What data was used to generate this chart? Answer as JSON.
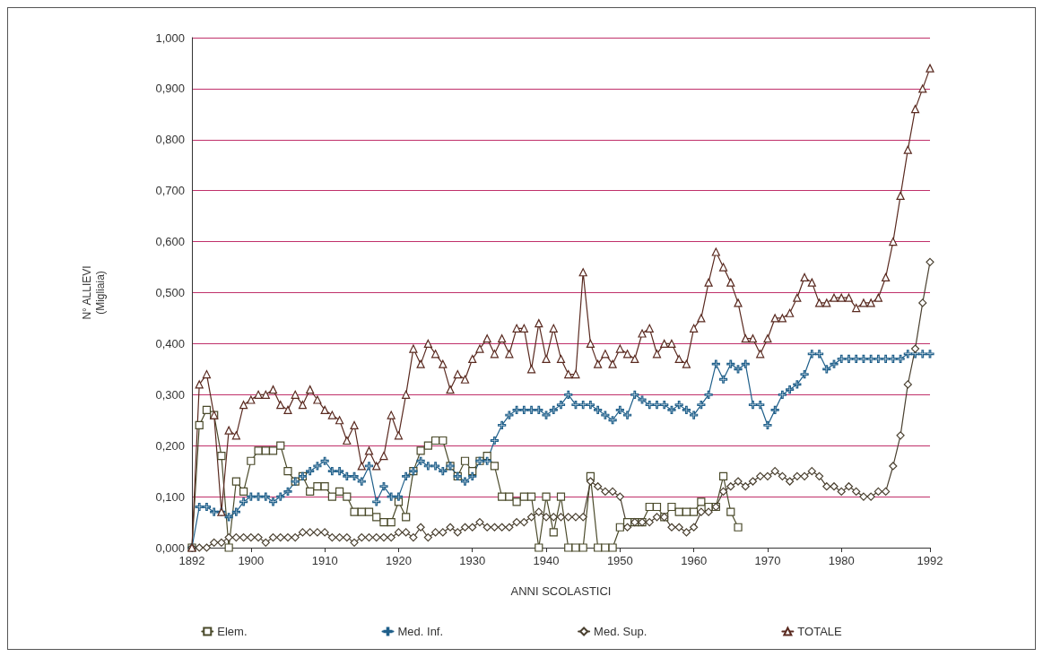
{
  "chart_data": {
    "type": "line",
    "xlabel": "ANNI SCOLASTICI",
    "ylabel": "N° ALLIEVI\n(Migliaia)",
    "x": [
      1892,
      1893,
      1894,
      1895,
      1896,
      1897,
      1898,
      1899,
      1900,
      1901,
      1902,
      1903,
      1904,
      1905,
      1906,
      1907,
      1908,
      1909,
      1910,
      1911,
      1912,
      1913,
      1914,
      1915,
      1916,
      1917,
      1918,
      1919,
      1920,
      1921,
      1922,
      1923,
      1924,
      1925,
      1926,
      1927,
      1928,
      1929,
      1930,
      1931,
      1932,
      1933,
      1934,
      1935,
      1936,
      1937,
      1938,
      1939,
      1940,
      1941,
      1942,
      1943,
      1944,
      1945,
      1946,
      1947,
      1948,
      1949,
      1950,
      1951,
      1952,
      1953,
      1954,
      1955,
      1956,
      1957,
      1958,
      1959,
      1960,
      1961,
      1962,
      1963,
      1964,
      1965,
      1966,
      1967,
      1968,
      1969,
      1970,
      1971,
      1972,
      1973,
      1974,
      1975,
      1976,
      1977,
      1978,
      1979,
      1980,
      1981,
      1982,
      1983,
      1984,
      1985,
      1986,
      1987,
      1988,
      1989,
      1990,
      1991,
      1992
    ],
    "series": [
      {
        "name": "Elem.",
        "color": "#4a4a2a",
        "marker": "square",
        "values": [
          0,
          0.24,
          0.27,
          0.26,
          0.18,
          0,
          0.13,
          0.11,
          0.17,
          0.19,
          0.19,
          0.19,
          0.2,
          0.15,
          0.13,
          0.14,
          0.11,
          0.12,
          0.12,
          0.1,
          0.11,
          0.1,
          0.07,
          0.07,
          0.07,
          0.06,
          0.05,
          0.05,
          0.09,
          0.06,
          0.15,
          0.19,
          0.2,
          0.21,
          0.21,
          0.16,
          0.14,
          0.17,
          0.15,
          0.17,
          0.18,
          0.16,
          0.1,
          0.1,
          0.09,
          0.1,
          0.1,
          0,
          0.1,
          0.03,
          0.1,
          0,
          0,
          0,
          0.14,
          0,
          0,
          0,
          0.04,
          0.05,
          0.05,
          0.05,
          0.08,
          0.08,
          0.06,
          0.08,
          0.07,
          0.07,
          0.07,
          0.09,
          0.08,
          0.08,
          0.14,
          0.07,
          0.04,
          null,
          null,
          null,
          null,
          null,
          null,
          null,
          null,
          null,
          null,
          null,
          null,
          null,
          null,
          null,
          null,
          null,
          null,
          null,
          null,
          null,
          null,
          null,
          null,
          null,
          null
        ]
      },
      {
        "name": "Med. Inf.",
        "color": "#1f5f8a",
        "marker": "cross",
        "values": [
          0,
          0.08,
          0.08,
          0.07,
          0.07,
          0.06,
          0.07,
          0.09,
          0.1,
          0.1,
          0.1,
          0.09,
          0.1,
          0.11,
          0.13,
          0.14,
          0.15,
          0.16,
          0.17,
          0.15,
          0.15,
          0.14,
          0.14,
          0.13,
          0.16,
          0.09,
          0.12,
          0.1,
          0.1,
          0.14,
          0.15,
          0.17,
          0.16,
          0.16,
          0.15,
          0.16,
          0.14,
          0.13,
          0.14,
          0.17,
          0.17,
          0.21,
          0.24,
          0.26,
          0.27,
          0.27,
          0.27,
          0.27,
          0.26,
          0.27,
          0.28,
          0.3,
          0.28,
          0.28,
          0.28,
          0.27,
          0.26,
          0.25,
          0.27,
          0.26,
          0.3,
          0.29,
          0.28,
          0.28,
          0.28,
          0.27,
          0.28,
          0.27,
          0.26,
          0.28,
          0.3,
          0.36,
          0.33,
          0.36,
          0.35,
          0.36,
          0.28,
          0.28,
          0.24,
          0.27,
          0.3,
          0.31,
          0.32,
          0.34,
          0.38,
          0.38,
          0.35,
          0.36,
          0.37,
          0.37,
          0.37,
          0.37,
          0.37,
          0.37,
          0.37,
          0.37,
          0.37,
          0.38,
          0.38,
          0.38,
          0.38
        ]
      },
      {
        "name": "Med. Sup.",
        "color": "#4a4030",
        "marker": "diamond",
        "values": [
          0,
          0,
          0,
          0.01,
          0.01,
          0.02,
          0.02,
          0.02,
          0.02,
          0.02,
          0.01,
          0.02,
          0.02,
          0.02,
          0.02,
          0.03,
          0.03,
          0.03,
          0.03,
          0.02,
          0.02,
          0.02,
          0.01,
          0.02,
          0.02,
          0.02,
          0.02,
          0.02,
          0.03,
          0.03,
          0.02,
          0.04,
          0.02,
          0.03,
          0.03,
          0.04,
          0.03,
          0.04,
          0.04,
          0.05,
          0.04,
          0.04,
          0.04,
          0.04,
          0.05,
          0.05,
          0.06,
          0.07,
          0.06,
          0.06,
          0.06,
          0.06,
          0.06,
          0.06,
          0.13,
          0.12,
          0.11,
          0.11,
          0.1,
          0.04,
          0.05,
          0.05,
          0.05,
          0.06,
          0.06,
          0.04,
          0.04,
          0.03,
          0.04,
          0.07,
          0.07,
          0.08,
          0.11,
          0.12,
          0.13,
          0.12,
          0.13,
          0.14,
          0.14,
          0.15,
          0.14,
          0.13,
          0.14,
          0.14,
          0.15,
          0.14,
          0.12,
          0.12,
          0.11,
          0.12,
          0.11,
          0.1,
          0.1,
          0.11,
          0.11,
          0.16,
          0.22,
          0.32,
          0.39,
          0.48,
          0.56
        ]
      },
      {
        "name": "TOTALE",
        "color": "#5a2a20",
        "marker": "triangle",
        "values": [
          0,
          0.32,
          0.34,
          0.26,
          0.07,
          0.23,
          0.22,
          0.28,
          0.29,
          0.3,
          0.3,
          0.31,
          0.28,
          0.27,
          0.3,
          0.28,
          0.31,
          0.29,
          0.27,
          0.26,
          0.25,
          0.21,
          0.24,
          0.16,
          0.19,
          0.16,
          0.18,
          0.26,
          0.22,
          0.3,
          0.39,
          0.36,
          0.4,
          0.38,
          0.36,
          0.31,
          0.34,
          0.33,
          0.37,
          0.39,
          0.41,
          0.38,
          0.41,
          0.38,
          0.43,
          0.43,
          0.35,
          0.44,
          0.37,
          0.43,
          0.37,
          0.34,
          0.34,
          0.54,
          0.4,
          0.36,
          0.38,
          0.36,
          0.39,
          0.38,
          0.37,
          0.42,
          0.43,
          0.38,
          0.4,
          0.4,
          0.37,
          0.36,
          0.43,
          0.45,
          0.52,
          0.58,
          0.55,
          0.52,
          0.48,
          0.41,
          0.41,
          0.38,
          0.41,
          0.45,
          0.45,
          0.46,
          0.49,
          0.53,
          0.52,
          0.48,
          0.48,
          0.49,
          0.49,
          0.49,
          0.47,
          0.48,
          0.48,
          0.49,
          0.53,
          0.6,
          0.69,
          0.78,
          0.86,
          0.9,
          0.94
        ]
      }
    ],
    "xlim": [
      1892,
      1992
    ],
    "xticks": [
      1892,
      1900,
      1910,
      1920,
      1930,
      1940,
      1950,
      1960,
      1970,
      1980,
      1992
    ],
    "ylim": [
      0,
      1
    ],
    "yticks": [
      {
        "value": 0,
        "label": "0,000"
      },
      {
        "value": 0.1,
        "label": "0,100"
      },
      {
        "value": 0.2,
        "label": "0,200"
      },
      {
        "value": 0.3,
        "label": "0,300"
      },
      {
        "value": 0.4,
        "label": "0,400"
      },
      {
        "value": 0.5,
        "label": "0,500"
      },
      {
        "value": 0.6,
        "label": "0,600"
      },
      {
        "value": 0.7,
        "label": "0,700"
      },
      {
        "value": 0.8,
        "label": "0,800"
      },
      {
        "value": 0.9,
        "label": "0,900"
      },
      {
        "value": 1,
        "label": "1,000"
      }
    ],
    "grid": "y",
    "legend": "bottom",
    "line_style": "solid"
  }
}
